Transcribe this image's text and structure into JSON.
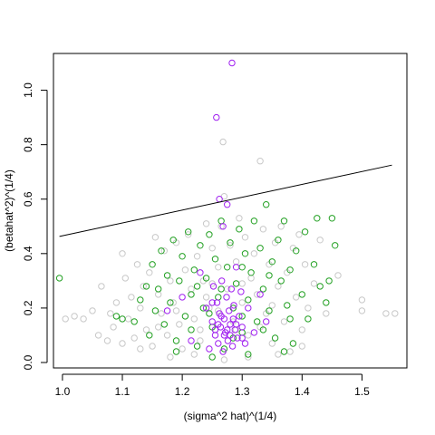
{
  "chart_data": {
    "type": "scatter",
    "title": "",
    "xlabel": "(sigma^2 hat)^(1/4)",
    "ylabel": "(betahat^2)^(1/4)",
    "xlim": [
      0.985,
      1.575
    ],
    "ylim": [
      -0.02,
      1.135
    ],
    "xticks": [
      1.0,
      1.1,
      1.2,
      1.3,
      1.4,
      1.5
    ],
    "xtick_labels": [
      "1.0",
      "1.1",
      "1.2",
      "1.3",
      "1.4",
      "1.5"
    ],
    "yticks": [
      0.0,
      0.2,
      0.4,
      0.6,
      0.8,
      1.0
    ],
    "ytick_labels": [
      "0.0",
      "0.2",
      "0.4",
      "0.6",
      "0.8",
      "1.0"
    ],
    "grid": false,
    "legend": "none",
    "reference_line": {
      "x": [
        0.995,
        1.55
      ],
      "y": [
        0.463,
        0.725
      ],
      "color": "#000000"
    },
    "series": [
      {
        "color": "#c8c8c8",
        "marker": "open-circle",
        "points": [
          [
            1.005,
            0.16
          ],
          [
            1.02,
            0.17
          ],
          [
            1.035,
            0.16
          ],
          [
            1.05,
            0.19
          ],
          [
            1.06,
            0.1
          ],
          [
            1.065,
            0.28
          ],
          [
            1.075,
            0.08
          ],
          [
            1.08,
            0.18
          ],
          [
            1.085,
            0.13
          ],
          [
            1.09,
            0.22
          ],
          [
            1.1,
            0.4
          ],
          [
            1.1,
            0.07
          ],
          [
            1.105,
            0.31
          ],
          [
            1.11,
            0.16
          ],
          [
            1.115,
            0.24
          ],
          [
            1.12,
            0.09
          ],
          [
            1.125,
            0.36
          ],
          [
            1.13,
            0.2
          ],
          [
            1.135,
            0.28
          ],
          [
            1.14,
            0.12
          ],
          [
            1.145,
            0.33
          ],
          [
            1.15,
            0.06
          ],
          [
            1.155,
            0.46
          ],
          [
            1.16,
            0.25
          ],
          [
            1.165,
            0.18
          ],
          [
            1.17,
            0.41
          ],
          [
            1.175,
            0.1
          ],
          [
            1.18,
            0.3
          ],
          [
            1.185,
            0.22
          ],
          [
            1.19,
            0.44
          ],
          [
            1.195,
            0.14
          ],
          [
            1.2,
            0.05
          ],
          [
            1.205,
            0.34
          ],
          [
            1.21,
            0.47
          ],
          [
            1.215,
            0.27
          ],
          [
            1.22,
            0.16
          ],
          [
            1.225,
            0.39
          ],
          [
            1.23,
            0.08
          ],
          [
            1.235,
            0.3
          ],
          [
            1.24,
            0.51
          ],
          [
            1.245,
            0.2
          ],
          [
            1.25,
            0.42
          ],
          [
            1.255,
            0.12
          ],
          [
            1.26,
            0.35
          ],
          [
            1.265,
            0.5
          ],
          [
            1.27,
            0.61
          ],
          [
            1.268,
            0.81
          ],
          [
            1.275,
            0.27
          ],
          [
            1.28,
            0.43
          ],
          [
            1.285,
            0.15
          ],
          [
            1.29,
            0.37
          ],
          [
            1.295,
            0.53
          ],
          [
            1.3,
            0.22
          ],
          [
            1.305,
            0.46
          ],
          [
            1.31,
            0.1
          ],
          [
            1.315,
            0.31
          ],
          [
            1.32,
            0.4
          ],
          [
            1.325,
            0.25
          ],
          [
            1.33,
            0.74
          ],
          [
            1.335,
            0.49
          ],
          [
            1.34,
            0.18
          ],
          [
            1.345,
            0.36
          ],
          [
            1.35,
            0.07
          ],
          [
            1.355,
            0.44
          ],
          [
            1.36,
            0.28
          ],
          [
            1.365,
            0.5
          ],
          [
            1.37,
            0.15
          ],
          [
            1.375,
            0.33
          ],
          [
            1.38,
            0.04
          ],
          [
            1.385,
            0.42
          ],
          [
            1.39,
            0.24
          ],
          [
            1.395,
            0.47
          ],
          [
            1.4,
            0.12
          ],
          [
            1.405,
            0.36
          ],
          [
            1.41,
            0.2
          ],
          [
            1.42,
            0.29
          ],
          [
            1.43,
            0.45
          ],
          [
            1.44,
            0.18
          ],
          [
            1.46,
            0.32
          ],
          [
            1.5,
            0.23
          ],
          [
            1.5,
            0.19
          ],
          [
            1.54,
            0.18
          ],
          [
            1.555,
            0.18
          ],
          [
            1.13,
            0.05
          ],
          [
            1.18,
            0.02
          ],
          [
            1.22,
            0.03
          ],
          [
            1.27,
            0.01
          ],
          [
            1.31,
            0.02
          ],
          [
            1.36,
            0.03
          ],
          [
            1.4,
            0.06
          ],
          [
            1.16,
            0.13
          ],
          [
            1.19,
            0.19
          ],
          [
            1.23,
            0.12
          ],
          [
            1.24,
            0.24
          ],
          [
            1.25,
            0.29
          ],
          [
            1.26,
            0.19
          ],
          [
            1.29,
            0.12
          ],
          [
            1.3,
            0.29
          ],
          [
            1.33,
            0.13
          ],
          [
            1.35,
            0.21
          ]
        ]
      },
      {
        "color": "#22a022",
        "marker": "open-circle",
        "points": [
          [
            0.995,
            0.31
          ],
          [
            1.09,
            0.17
          ],
          [
            1.1,
            0.16
          ],
          [
            1.12,
            0.15
          ],
          [
            1.13,
            0.23
          ],
          [
            1.14,
            0.28
          ],
          [
            1.145,
            0.1
          ],
          [
            1.15,
            0.36
          ],
          [
            1.155,
            0.19
          ],
          [
            1.16,
            0.27
          ],
          [
            1.165,
            0.41
          ],
          [
            1.17,
            0.14
          ],
          [
            1.175,
            0.32
          ],
          [
            1.18,
            0.22
          ],
          [
            1.185,
            0.45
          ],
          [
            1.19,
            0.08
          ],
          [
            1.195,
            0.3
          ],
          [
            1.2,
            0.39
          ],
          [
            1.205,
            0.17
          ],
          [
            1.21,
            0.48
          ],
          [
            1.215,
            0.25
          ],
          [
            1.22,
            0.34
          ],
          [
            1.225,
            0.06
          ],
          [
            1.23,
            0.43
          ],
          [
            1.235,
            0.2
          ],
          [
            1.24,
            0.31
          ],
          [
            1.245,
            0.47
          ],
          [
            1.25,
            0.13
          ],
          [
            1.255,
            0.38
          ],
          [
            1.26,
            0.24
          ],
          [
            1.265,
            0.52
          ],
          [
            1.27,
            0.05
          ],
          [
            1.275,
            0.35
          ],
          [
            1.28,
            0.44
          ],
          [
            1.285,
            0.2
          ],
          [
            1.29,
            0.29
          ],
          [
            1.295,
            0.49
          ],
          [
            1.3,
            0.11
          ],
          [
            1.305,
            0.4
          ],
          [
            1.31,
            0.23
          ],
          [
            1.315,
            0.33
          ],
          [
            1.32,
            0.52
          ],
          [
            1.325,
            0.15
          ],
          [
            1.33,
            0.42
          ],
          [
            1.335,
            0.27
          ],
          [
            1.34,
            0.58
          ],
          [
            1.345,
            0.19
          ],
          [
            1.35,
            0.37
          ],
          [
            1.355,
            0.09
          ],
          [
            1.36,
            0.45
          ],
          [
            1.365,
            0.3
          ],
          [
            1.37,
            0.52
          ],
          [
            1.375,
            0.21
          ],
          [
            1.38,
            0.34
          ],
          [
            1.385,
            0.07
          ],
          [
            1.39,
            0.41
          ],
          [
            1.4,
            0.25
          ],
          [
            1.405,
            0.48
          ],
          [
            1.41,
            0.16
          ],
          [
            1.42,
            0.36
          ],
          [
            1.425,
            0.53
          ],
          [
            1.43,
            0.28
          ],
          [
            1.44,
            0.22
          ],
          [
            1.445,
            0.3
          ],
          [
            1.45,
            0.53
          ],
          [
            1.455,
            0.43
          ],
          [
            1.37,
            0.04
          ],
          [
            1.31,
            0.03
          ],
          [
            1.25,
            0.02
          ],
          [
            1.19,
            0.04
          ],
          [
            1.215,
            0.12
          ],
          [
            1.245,
            0.18
          ],
          [
            1.285,
            0.09
          ],
          [
            1.3,
            0.17
          ],
          [
            1.335,
            0.12
          ],
          [
            1.225,
            0.28
          ],
          [
            1.265,
            0.27
          ],
          [
            1.3,
            0.35
          ],
          [
            1.345,
            0.32
          ],
          [
            1.38,
            0.16
          ]
        ]
      },
      {
        "color": "#a020f0",
        "marker": "open-circle",
        "points": [
          [
            1.283,
            1.1
          ],
          [
            1.257,
            0.9
          ],
          [
            1.275,
            0.58
          ],
          [
            1.262,
            0.6
          ],
          [
            1.268,
            0.5
          ],
          [
            1.175,
            0.19
          ],
          [
            1.2,
            0.24
          ],
          [
            1.215,
            0.08
          ],
          [
            1.23,
            0.33
          ],
          [
            1.24,
            0.2
          ],
          [
            1.245,
            0.05
          ],
          [
            1.25,
            0.15
          ],
          [
            1.252,
            0.28
          ],
          [
            1.255,
            0.1
          ],
          [
            1.258,
            0.22
          ],
          [
            1.26,
            0.07
          ],
          [
            1.262,
            0.18
          ],
          [
            1.264,
            0.13
          ],
          [
            1.266,
            0.3
          ],
          [
            1.268,
            0.04
          ],
          [
            1.27,
            0.16
          ],
          [
            1.272,
            0.11
          ],
          [
            1.274,
            0.24
          ],
          [
            1.276,
            0.08
          ],
          [
            1.278,
            0.19
          ],
          [
            1.28,
            0.14
          ],
          [
            1.282,
            0.27
          ],
          [
            1.284,
            0.06
          ],
          [
            1.286,
            0.21
          ],
          [
            1.288,
            0.12
          ],
          [
            1.29,
            0.35
          ],
          [
            1.292,
            0.09
          ],
          [
            1.295,
            0.17
          ],
          [
            1.298,
            0.26
          ],
          [
            1.3,
            0.13
          ],
          [
            1.305,
            0.07
          ],
          [
            1.31,
            0.2
          ],
          [
            1.32,
            0.11
          ],
          [
            1.33,
            0.25
          ],
          [
            1.34,
            0.15
          ],
          [
            1.3,
            0.09
          ],
          [
            1.255,
            0.12
          ],
          [
            1.265,
            0.17
          ],
          [
            1.275,
            0.12
          ],
          [
            1.285,
            0.16
          ],
          [
            1.26,
            0.14
          ],
          [
            1.27,
            0.1
          ],
          [
            1.28,
            0.1
          ],
          [
            1.29,
            0.14
          ],
          [
            1.25,
            0.22
          ]
        ]
      }
    ]
  }
}
